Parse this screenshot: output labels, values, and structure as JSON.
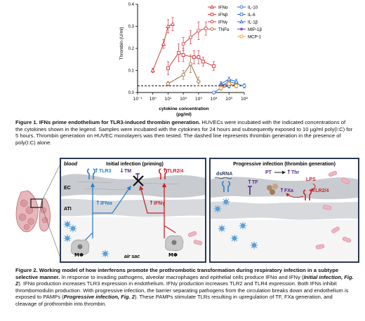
{
  "figure1": {
    "caption_title": "Figure 1. IFNs prime endothelium for TLR3-induced thrombin generation.",
    "caption_body": " HUVECs were incubated with the indicated concentrations of the cytokines shown in the legend. Samples were incubated with the cytokines for 24 hours and subsequently exposed to 10 µg/ml poly(I:C) for 5 hours. Thrombin generation on HUVEC monolayers was then tested. The dashed line represents thrombin generation in the presence of poly(I:C) alone."
  },
  "chart_data": {
    "type": "line",
    "ylabel": "Thrombin (U/ml)",
    "xlabel": "cytokine concentration",
    "xunit": "(pg/ml)",
    "xscale": "log",
    "x_ticks": [
      "10⁻¹",
      "10⁰",
      "10¹",
      "10²",
      "10³",
      "10⁴",
      "10⁵",
      "10⁶"
    ],
    "y_ticks": [
      "0.0",
      "0.1",
      "0.2",
      "0.3",
      "0.4"
    ],
    "ylim": [
      0,
      0.4
    ],
    "baseline_poly_ic": 0.03,
    "series": [
      {
        "name": "IFNα",
        "color": "#d9343a",
        "marker": "triangle",
        "x": [
          1,
          5,
          10,
          20
        ],
        "y": [
          0.1,
          0.22,
          0.3,
          0.31
        ],
        "err": [
          0.01,
          0.02,
          0.03,
          0.03
        ]
      },
      {
        "name": "IFNβ",
        "color": "#d9343a",
        "marker": "square",
        "x": [
          10,
          50,
          100,
          500,
          1000,
          2000,
          10000
        ],
        "y": [
          0.11,
          0.18,
          0.17,
          0.16,
          0.16,
          0.14,
          0.12
        ],
        "err": [
          0.03,
          0.04,
          0.03,
          0.03,
          0.03,
          0.02,
          0.02
        ]
      },
      {
        "name": "IFNγ",
        "color": "#d9343a",
        "marker": "circle",
        "x": [
          100,
          300,
          1000,
          3000
        ],
        "y": [
          0.22,
          0.25,
          0.28,
          0.29
        ],
        "err": [
          0.03,
          0.03,
          0.04,
          0.03
        ]
      },
      {
        "name": "TNFα",
        "color": "#9b6c3f",
        "marker": "circle",
        "x": [
          10,
          100,
          300,
          1000
        ],
        "y": [
          0.04,
          0.08,
          0.13,
          0.05
        ],
        "err": [
          0.01,
          0.02,
          0.04,
          0.02
        ]
      },
      {
        "name": "IL-10",
        "color": "#2d6fd1",
        "marker": "circle",
        "x": [
          10000,
          30000,
          100000,
          300000,
          1000000
        ],
        "y": [
          0.0,
          0.02,
          0.03,
          0.04,
          0.03
        ],
        "err": [
          0.0,
          0.01,
          0.01,
          0.01,
          0.01
        ]
      },
      {
        "name": "IL-6",
        "color": "#2d6fd1",
        "marker": "square",
        "x": [
          30000,
          100000,
          300000
        ],
        "y": [
          0.03,
          0.05,
          0.04
        ],
        "err": [
          0.01,
          0.01,
          0.01
        ]
      },
      {
        "name": "IL-1β",
        "color": "#2d6fd1",
        "marker": "triangle",
        "x": [
          30000,
          100000,
          300000
        ],
        "y": [
          0.04,
          0.06,
          0.05
        ],
        "err": [
          0.01,
          0.01,
          0.01
        ]
      },
      {
        "name": "MIP-1β",
        "color": "#7b3fb0",
        "marker": "star",
        "x": [
          30000,
          100000,
          300000
        ],
        "y": [
          0.03,
          0.04,
          0.03
        ],
        "err": [
          0.01,
          0.01,
          0.01
        ]
      },
      {
        "name": "MCP-1",
        "color": "#f0a32a",
        "marker": "square",
        "x": [
          30000,
          100000,
          300000
        ],
        "y": [
          0.02,
          0.04,
          0.03
        ],
        "err": [
          0.01,
          0.01,
          0.01
        ]
      }
    ]
  },
  "figure2": {
    "panel_left_title": "Initial infection (priming)",
    "panel_right_title": "Progressive infection (thrombin generation)",
    "labels": {
      "blood": "blood",
      "ec": "EC",
      "ati": "ATI",
      "air_sac": "air sac",
      "tlr3": "TLR3",
      "tm": "TM",
      "tlr24": "TLR2/4",
      "ifna": "IFNα",
      "ifng": "IFNγ",
      "mphi": "MΦ",
      "dsrna": "dsRNA",
      "tf": "TF",
      "pt": "PT",
      "thr": "Thr",
      "fxa": "FXa",
      "lps": "LPS"
    },
    "arrows": {
      "up": "↑",
      "down": "↓"
    },
    "colors": {
      "frame": "#2b3a55",
      "endothelium": "#c8cbd0",
      "ati": "#d7d9dc",
      "blue": "#2f7fc4",
      "red": "#c8232c",
      "purple": "#5e2a8a"
    },
    "caption_title": "Figure 2. Working model of how interferons promote the prothrombotic transformation during respiratory infection in a subtype selective manner.",
    "caption_body_1": " In response to invading pathogens, alveolar macrophages and epithelial cells produce IFNα and IFNγ (",
    "caption_em_1": "Initial infection, Fig. 2",
    "caption_body_2": "). IFNα production increases TLR3 expression in endothelium. IFNγ production increases TLR2 and TLR4 expression. Both IFNs inhibit thrombomodulin production. With progressive infection, the barrier separating pathogens from the circulation breaks down and endothelium is exposed to PAMPs (",
    "caption_em_2": "Progressive infection, Fig. 2",
    "caption_body_3": "). These PAMPs stimulate TLRs resulting in upregulation of TF, FXa generation, and cleavage of prothrombin into thrombin."
  }
}
